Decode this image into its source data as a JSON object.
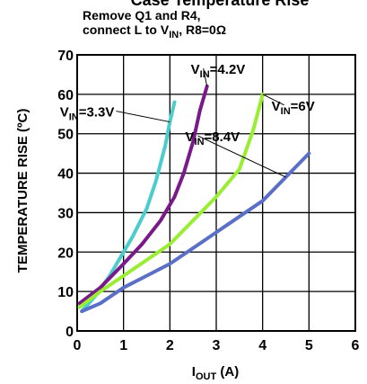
{
  "chart_data": {
    "type": "line",
    "title": "Case Temperature Rise",
    "subtitle_lines": [
      {
        "text": "Remove Q1 and R4,"
      },
      {
        "text": "connect L to V",
        "sub": "IN",
        "after": ", R8=0Ω"
      }
    ],
    "xlabel": {
      "main": "I",
      "sub": "OUT",
      "after": " (A)"
    },
    "ylabel": "TEMPERATURE RISE (ºC)",
    "xlim": [
      0,
      6
    ],
    "ylim": [
      0,
      70
    ],
    "x_ticks": [
      0,
      1,
      2,
      3,
      4,
      5,
      6
    ],
    "y_ticks": [
      0,
      10,
      20,
      30,
      40,
      50,
      60,
      70
    ],
    "grid": true,
    "series": [
      {
        "name": "VIN=3.3V",
        "label": {
          "pre": "V",
          "sub": "IN",
          "post": "=3.3V"
        },
        "color": "#4ccccc",
        "points": [
          [
            0.1,
            5
          ],
          [
            0.4,
            9
          ],
          [
            0.7,
            14
          ],
          [
            1.0,
            20
          ],
          [
            1.2,
            24
          ],
          [
            1.5,
            31
          ],
          [
            1.7,
            38
          ],
          [
            1.9,
            47
          ],
          [
            2.0,
            53
          ],
          [
            2.1,
            58
          ]
        ]
      },
      {
        "name": "VIN=4.2V",
        "label": {
          "pre": "V",
          "sub": "IN",
          "post": "=4.2V"
        },
        "color": "#7a1a8a",
        "points": [
          [
            0.05,
            7
          ],
          [
            0.5,
            11
          ],
          [
            1.0,
            17
          ],
          [
            1.4,
            22
          ],
          [
            1.8,
            28
          ],
          [
            2.1,
            34
          ],
          [
            2.3,
            40
          ],
          [
            2.5,
            48
          ],
          [
            2.65,
            56
          ],
          [
            2.8,
            62
          ]
        ]
      },
      {
        "name": "VIN=6V",
        "label": {
          "pre": "V",
          "sub": "IN",
          "post": "=6V"
        },
        "color": "#99ee33",
        "points": [
          [
            0.05,
            6
          ],
          [
            0.5,
            10
          ],
          [
            1.0,
            14
          ],
          [
            1.5,
            18
          ],
          [
            2.0,
            22
          ],
          [
            2.5,
            28
          ],
          [
            3.0,
            34
          ],
          [
            3.5,
            41
          ],
          [
            3.8,
            51
          ],
          [
            4.0,
            60
          ]
        ]
      },
      {
        "name": "VIN=8.4V",
        "label": {
          "pre": "V",
          "sub": "IN",
          "post": "=8.4V"
        },
        "color": "#5a6fc8",
        "points": [
          [
            0.1,
            5
          ],
          [
            0.5,
            7
          ],
          [
            1.0,
            11
          ],
          [
            1.5,
            14
          ],
          [
            2.0,
            17
          ],
          [
            2.5,
            21
          ],
          [
            3.0,
            25
          ],
          [
            3.5,
            29
          ],
          [
            4.0,
            33
          ],
          [
            4.5,
            39
          ],
          [
            5.0,
            45
          ]
        ]
      }
    ]
  }
}
